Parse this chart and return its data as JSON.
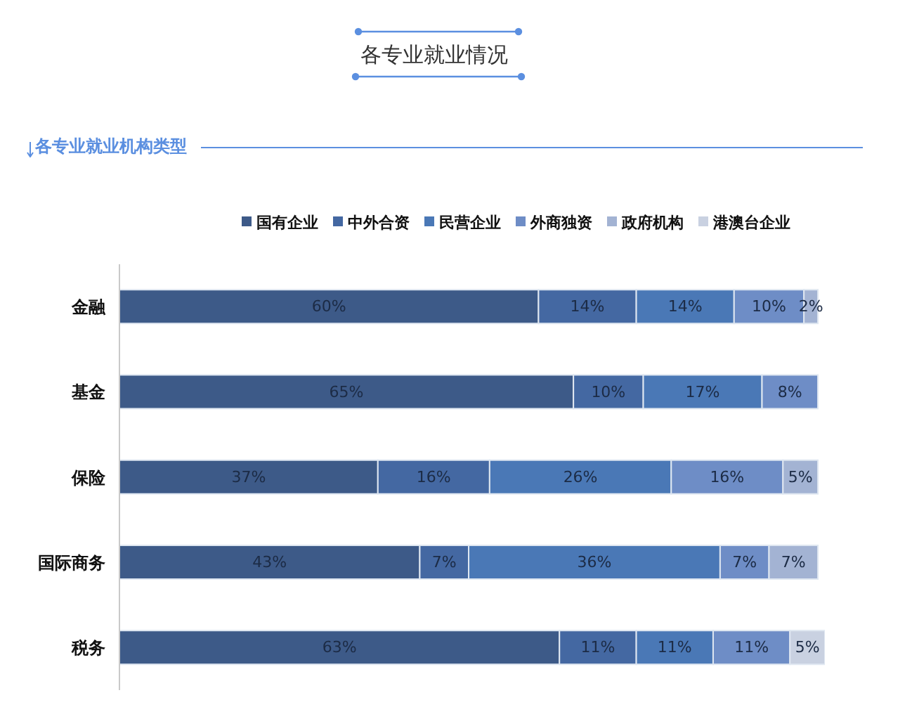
{
  "chart_data": {
    "type": "bar",
    "orientation": "horizontal",
    "stacked": true,
    "title": "各专业就业情况",
    "subtitle": "各专业就业机构类型",
    "categories": [
      "金融",
      "基金",
      "保险",
      "国际商务",
      "税务"
    ],
    "series": [
      {
        "name": "国有企业",
        "color": "#3d5a88",
        "values": [
          60,
          65,
          37,
          43,
          63
        ],
        "value_labels": [
          "60%",
          "65%",
          "37%",
          "43%",
          "63%"
        ]
      },
      {
        "name": "中外合资",
        "color": "#4468a2",
        "values": [
          14,
          10,
          16,
          7,
          11
        ],
        "value_labels": [
          "14%",
          "10%",
          "16%",
          "7%",
          "11%"
        ]
      },
      {
        "name": "民营企业",
        "color": "#4a78b6",
        "values": [
          14,
          17,
          26,
          36,
          11
        ],
        "value_labels": [
          "14%",
          "17%",
          "26%",
          "36%",
          "11%"
        ]
      },
      {
        "name": "外商独资",
        "color": "#6e8dc6",
        "values": [
          10,
          8,
          16,
          7,
          11
        ],
        "value_labels": [
          "10%",
          "8%",
          "16%",
          "7%",
          "11%"
        ]
      },
      {
        "name": "政府机构",
        "color": "#a3b3d3",
        "values": [
          2,
          null,
          5,
          7,
          null
        ],
        "value_labels": [
          "2%",
          null,
          "5%",
          "7%",
          null
        ]
      },
      {
        "name": "港澳台企业",
        "color": "#c9d1e1",
        "values": [
          null,
          null,
          null,
          null,
          5
        ],
        "value_labels": [
          null,
          null,
          null,
          null,
          "5%"
        ]
      }
    ],
    "xlim": [
      0,
      101
    ],
    "legend": "top",
    "tick_labels": "y"
  }
}
